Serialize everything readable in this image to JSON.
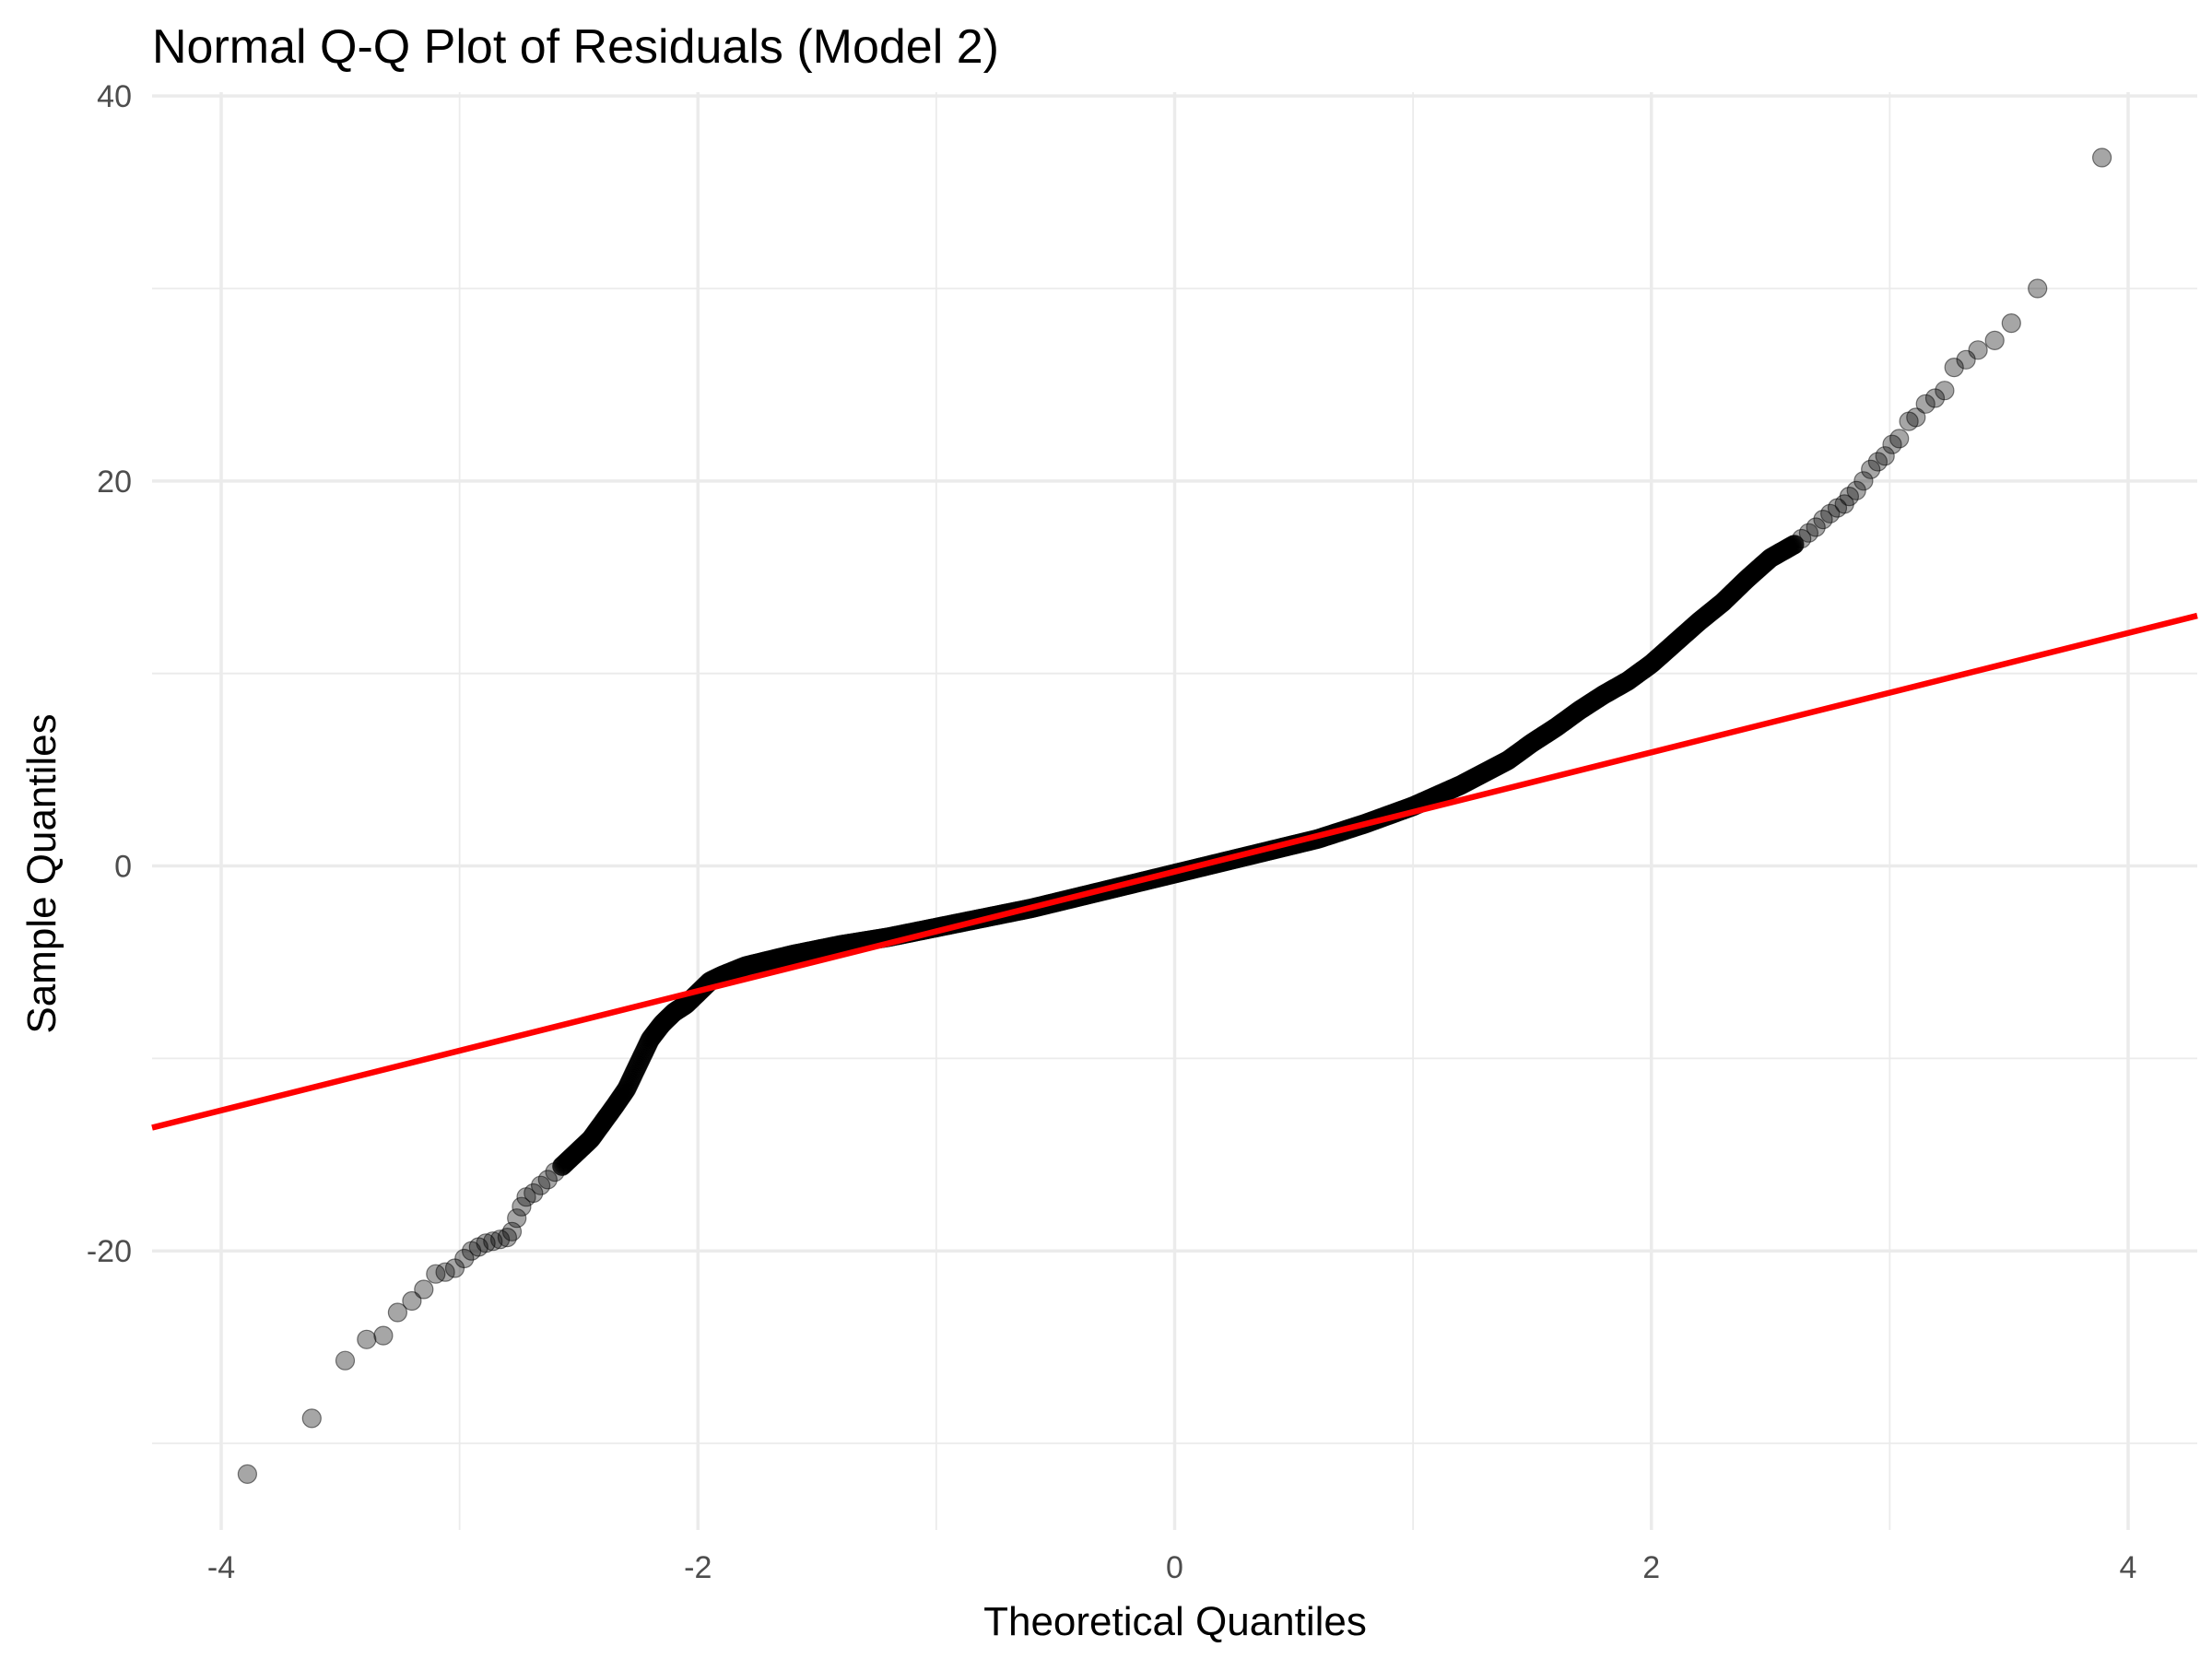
{
  "chart_data": {
    "type": "scatter",
    "title": "Normal Q-Q Plot of Residuals (Model 2)",
    "xlabel": "Theoretical Quantiles",
    "ylabel": "Sample Quantiles",
    "xlim": [
      -4.29,
      4.29
    ],
    "ylim": [
      -34.5,
      40.2
    ],
    "x_ticks": [
      -4,
      -2,
      0,
      2,
      4
    ],
    "x_tick_labels": [
      "-4",
      "-2",
      "0",
      "2",
      "4"
    ],
    "y_ticks": [
      -20,
      0,
      20,
      40
    ],
    "y_tick_labels": [
      "-20",
      "0",
      "20",
      "40"
    ],
    "grid": true,
    "legend": "none",
    "colors": {
      "points": "#000000",
      "reference_line": "#ff0000",
      "grid": "#ebebeb",
      "background": "#ffffff"
    },
    "reference_line": {
      "intercept": -0.3,
      "slope": 3.1
    },
    "tail_points": [
      {
        "x": -3.89,
        "y": -31.6
      },
      {
        "x": -3.62,
        "y": -28.7
      },
      {
        "x": -3.48,
        "y": -25.7
      },
      {
        "x": -3.39,
        "y": -24.6
      },
      {
        "x": -3.32,
        "y": -24.4
      },
      {
        "x": -3.26,
        "y": -23.2
      },
      {
        "x": -3.2,
        "y": -22.6
      },
      {
        "x": -3.15,
        "y": -22.0
      },
      {
        "x": -3.1,
        "y": -21.2
      },
      {
        "x": -3.06,
        "y": -21.1
      },
      {
        "x": -3.02,
        "y": -20.9
      },
      {
        "x": -2.98,
        "y": -20.4
      },
      {
        "x": -2.95,
        "y": -20.0
      },
      {
        "x": -2.92,
        "y": -19.8
      },
      {
        "x": -2.89,
        "y": -19.6
      },
      {
        "x": -2.86,
        "y": -19.5
      },
      {
        "x": -2.83,
        "y": -19.4
      },
      {
        "x": -2.8,
        "y": -19.3
      },
      {
        "x": -2.78,
        "y": -19.0
      },
      {
        "x": -2.76,
        "y": -18.3
      },
      {
        "x": -2.74,
        "y": -17.7
      },
      {
        "x": -2.72,
        "y": -17.2
      },
      {
        "x": -2.69,
        "y": -17.0
      },
      {
        "x": -2.66,
        "y": -16.6
      },
      {
        "x": -2.63,
        "y": -16.3
      },
      {
        "x": -2.6,
        "y": -15.9
      },
      {
        "x": -2.57,
        "y": -15.6
      },
      {
        "x": 2.6,
        "y": 16.7
      },
      {
        "x": 2.63,
        "y": 17.0
      },
      {
        "x": 2.66,
        "y": 17.3
      },
      {
        "x": 2.69,
        "y": 17.6
      },
      {
        "x": 2.72,
        "y": 18.0
      },
      {
        "x": 2.75,
        "y": 18.3
      },
      {
        "x": 2.78,
        "y": 18.6
      },
      {
        "x": 2.81,
        "y": 18.8
      },
      {
        "x": 2.83,
        "y": 19.2
      },
      {
        "x": 2.86,
        "y": 19.5
      },
      {
        "x": 2.89,
        "y": 20.0
      },
      {
        "x": 2.92,
        "y": 20.6
      },
      {
        "x": 2.95,
        "y": 21.0
      },
      {
        "x": 2.98,
        "y": 21.3
      },
      {
        "x": 3.01,
        "y": 21.9
      },
      {
        "x": 3.04,
        "y": 22.2
      },
      {
        "x": 3.08,
        "y": 23.1
      },
      {
        "x": 3.11,
        "y": 23.3
      },
      {
        "x": 3.15,
        "y": 24.0
      },
      {
        "x": 3.19,
        "y": 24.3
      },
      {
        "x": 3.23,
        "y": 24.7
      },
      {
        "x": 3.27,
        "y": 25.9
      },
      {
        "x": 3.32,
        "y": 26.3
      },
      {
        "x": 3.37,
        "y": 26.8
      },
      {
        "x": 3.44,
        "y": 27.3
      },
      {
        "x": 3.51,
        "y": 28.2
      },
      {
        "x": 3.62,
        "y": 30.0
      },
      {
        "x": 3.89,
        "y": 36.8
      }
    ],
    "dense_curve": [
      {
        "x": -2.57,
        "y": -15.6
      },
      {
        "x": -2.45,
        "y": -14.2
      },
      {
        "x": -2.35,
        "y": -12.5
      },
      {
        "x": -2.3,
        "y": -11.6
      },
      {
        "x": -2.25,
        "y": -10.3
      },
      {
        "x": -2.2,
        "y": -9.0
      },
      {
        "x": -2.15,
        "y": -8.2
      },
      {
        "x": -2.1,
        "y": -7.6
      },
      {
        "x": -2.05,
        "y": -7.2
      },
      {
        "x": -2.0,
        "y": -6.6
      },
      {
        "x": -1.95,
        "y": -6.0
      },
      {
        "x": -1.9,
        "y": -5.7
      },
      {
        "x": -1.8,
        "y": -5.2
      },
      {
        "x": -1.6,
        "y": -4.6
      },
      {
        "x": -1.4,
        "y": -4.1
      },
      {
        "x": -1.2,
        "y": -3.7
      },
      {
        "x": -1.0,
        "y": -3.2
      },
      {
        "x": -0.8,
        "y": -2.7
      },
      {
        "x": -0.6,
        "y": -2.2
      },
      {
        "x": -0.4,
        "y": -1.6
      },
      {
        "x": -0.2,
        "y": -1.0
      },
      {
        "x": 0.0,
        "y": -0.4
      },
      {
        "x": 0.2,
        "y": 0.2
      },
      {
        "x": 0.4,
        "y": 0.8
      },
      {
        "x": 0.6,
        "y": 1.4
      },
      {
        "x": 0.8,
        "y": 2.2
      },
      {
        "x": 1.0,
        "y": 3.1
      },
      {
        "x": 1.2,
        "y": 4.2
      },
      {
        "x": 1.4,
        "y": 5.5
      },
      {
        "x": 1.5,
        "y": 6.4
      },
      {
        "x": 1.6,
        "y": 7.2
      },
      {
        "x": 1.7,
        "y": 8.1
      },
      {
        "x": 1.8,
        "y": 8.9
      },
      {
        "x": 1.9,
        "y": 9.6
      },
      {
        "x": 2.0,
        "y": 10.5
      },
      {
        "x": 2.1,
        "y": 11.6
      },
      {
        "x": 2.2,
        "y": 12.7
      },
      {
        "x": 2.3,
        "y": 13.7
      },
      {
        "x": 2.4,
        "y": 14.9
      },
      {
        "x": 2.5,
        "y": 16.0
      },
      {
        "x": 2.6,
        "y": 16.7
      }
    ]
  }
}
